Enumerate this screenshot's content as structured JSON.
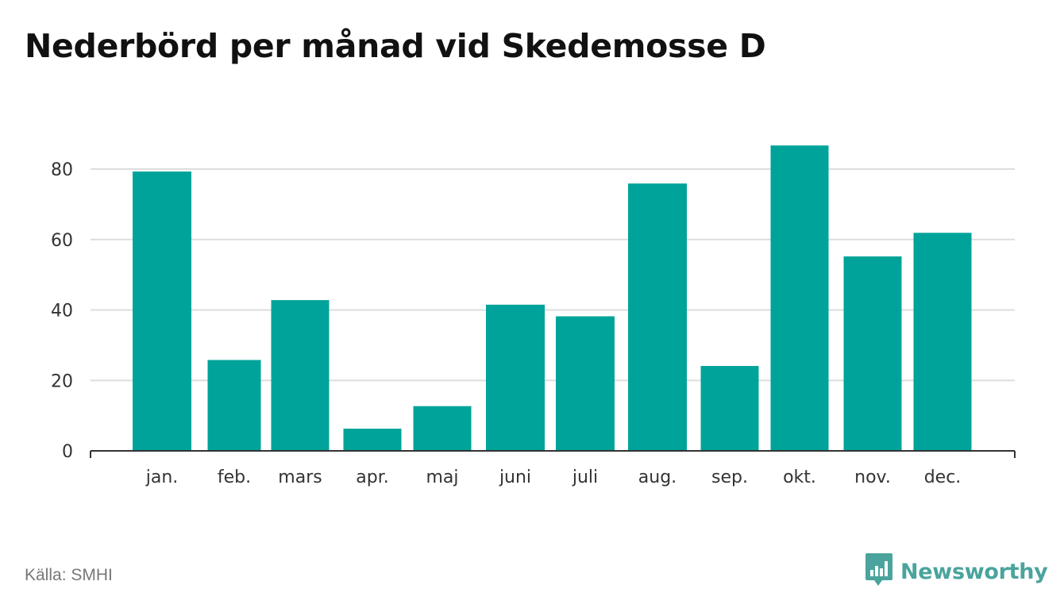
{
  "title": "Nederbörd per månad vid Skedemosse D",
  "source": "Källa: SMHI",
  "brand": {
    "name": "Newsworthy",
    "icon": "bar-chart-speech-bubble-icon",
    "color": "#4aa49d"
  },
  "colors": {
    "bar": "#00a39a",
    "grid": "#dddddd",
    "axis": "#333333"
  },
  "chart_data": {
    "type": "bar",
    "title": "Nederbörd per månad vid Skedemosse D",
    "xlabel": "",
    "ylabel": "",
    "categories": [
      "jan.",
      "feb.",
      "mars",
      "apr.",
      "maj",
      "juni",
      "juli",
      "aug.",
      "sep.",
      "okt.",
      "nov.",
      "dec."
    ],
    "values": [
      79.3,
      25.8,
      42.8,
      6.3,
      12.7,
      41.5,
      38.2,
      75.9,
      24.1,
      86.7,
      55.2,
      61.9
    ],
    "yticks": [
      0,
      20,
      40,
      60,
      80
    ],
    "ylim": [
      0,
      90
    ],
    "grid": true,
    "legend": "none"
  }
}
